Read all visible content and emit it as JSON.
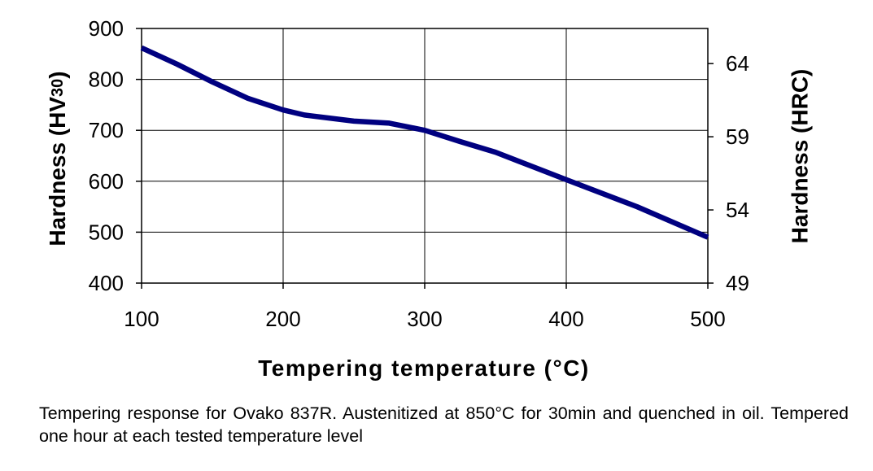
{
  "chart_data": {
    "type": "line",
    "xlabel": "Tempering temperature (°C)",
    "ylabel": "Hardness (HV30)",
    "ylabel_main": "Hardness (HV",
    "ylabel_sub": "30",
    "ylabel_close": ")",
    "y2label": "Hardness (HRC)",
    "xlim": [
      100,
      500
    ],
    "ylim": [
      400,
      900
    ],
    "y2lim": [
      49,
      66.4
    ],
    "x_ticks": [
      "100",
      "200",
      "300",
      "400",
      "500"
    ],
    "y_ticks": [
      "400",
      "500",
      "600",
      "700",
      "800",
      "900"
    ],
    "y2_ticks": [
      "49",
      "54",
      "59",
      "64"
    ],
    "grid": true,
    "line_color": "#000080",
    "series": [
      {
        "x": [
          100,
          125,
          150,
          175,
          200,
          215,
          250,
          275,
          300,
          325,
          350,
          375,
          400,
          450,
          500
        ],
        "y": [
          862,
          830,
          795,
          763,
          740,
          730,
          718,
          714,
          700,
          678,
          657,
          630,
          603,
          550,
          490
        ]
      }
    ]
  },
  "caption": "Tempering response for Ovako 837R. Austenitized at 850°C for 30min and quenched in oil. Tempered one hour at each tested temperature level"
}
